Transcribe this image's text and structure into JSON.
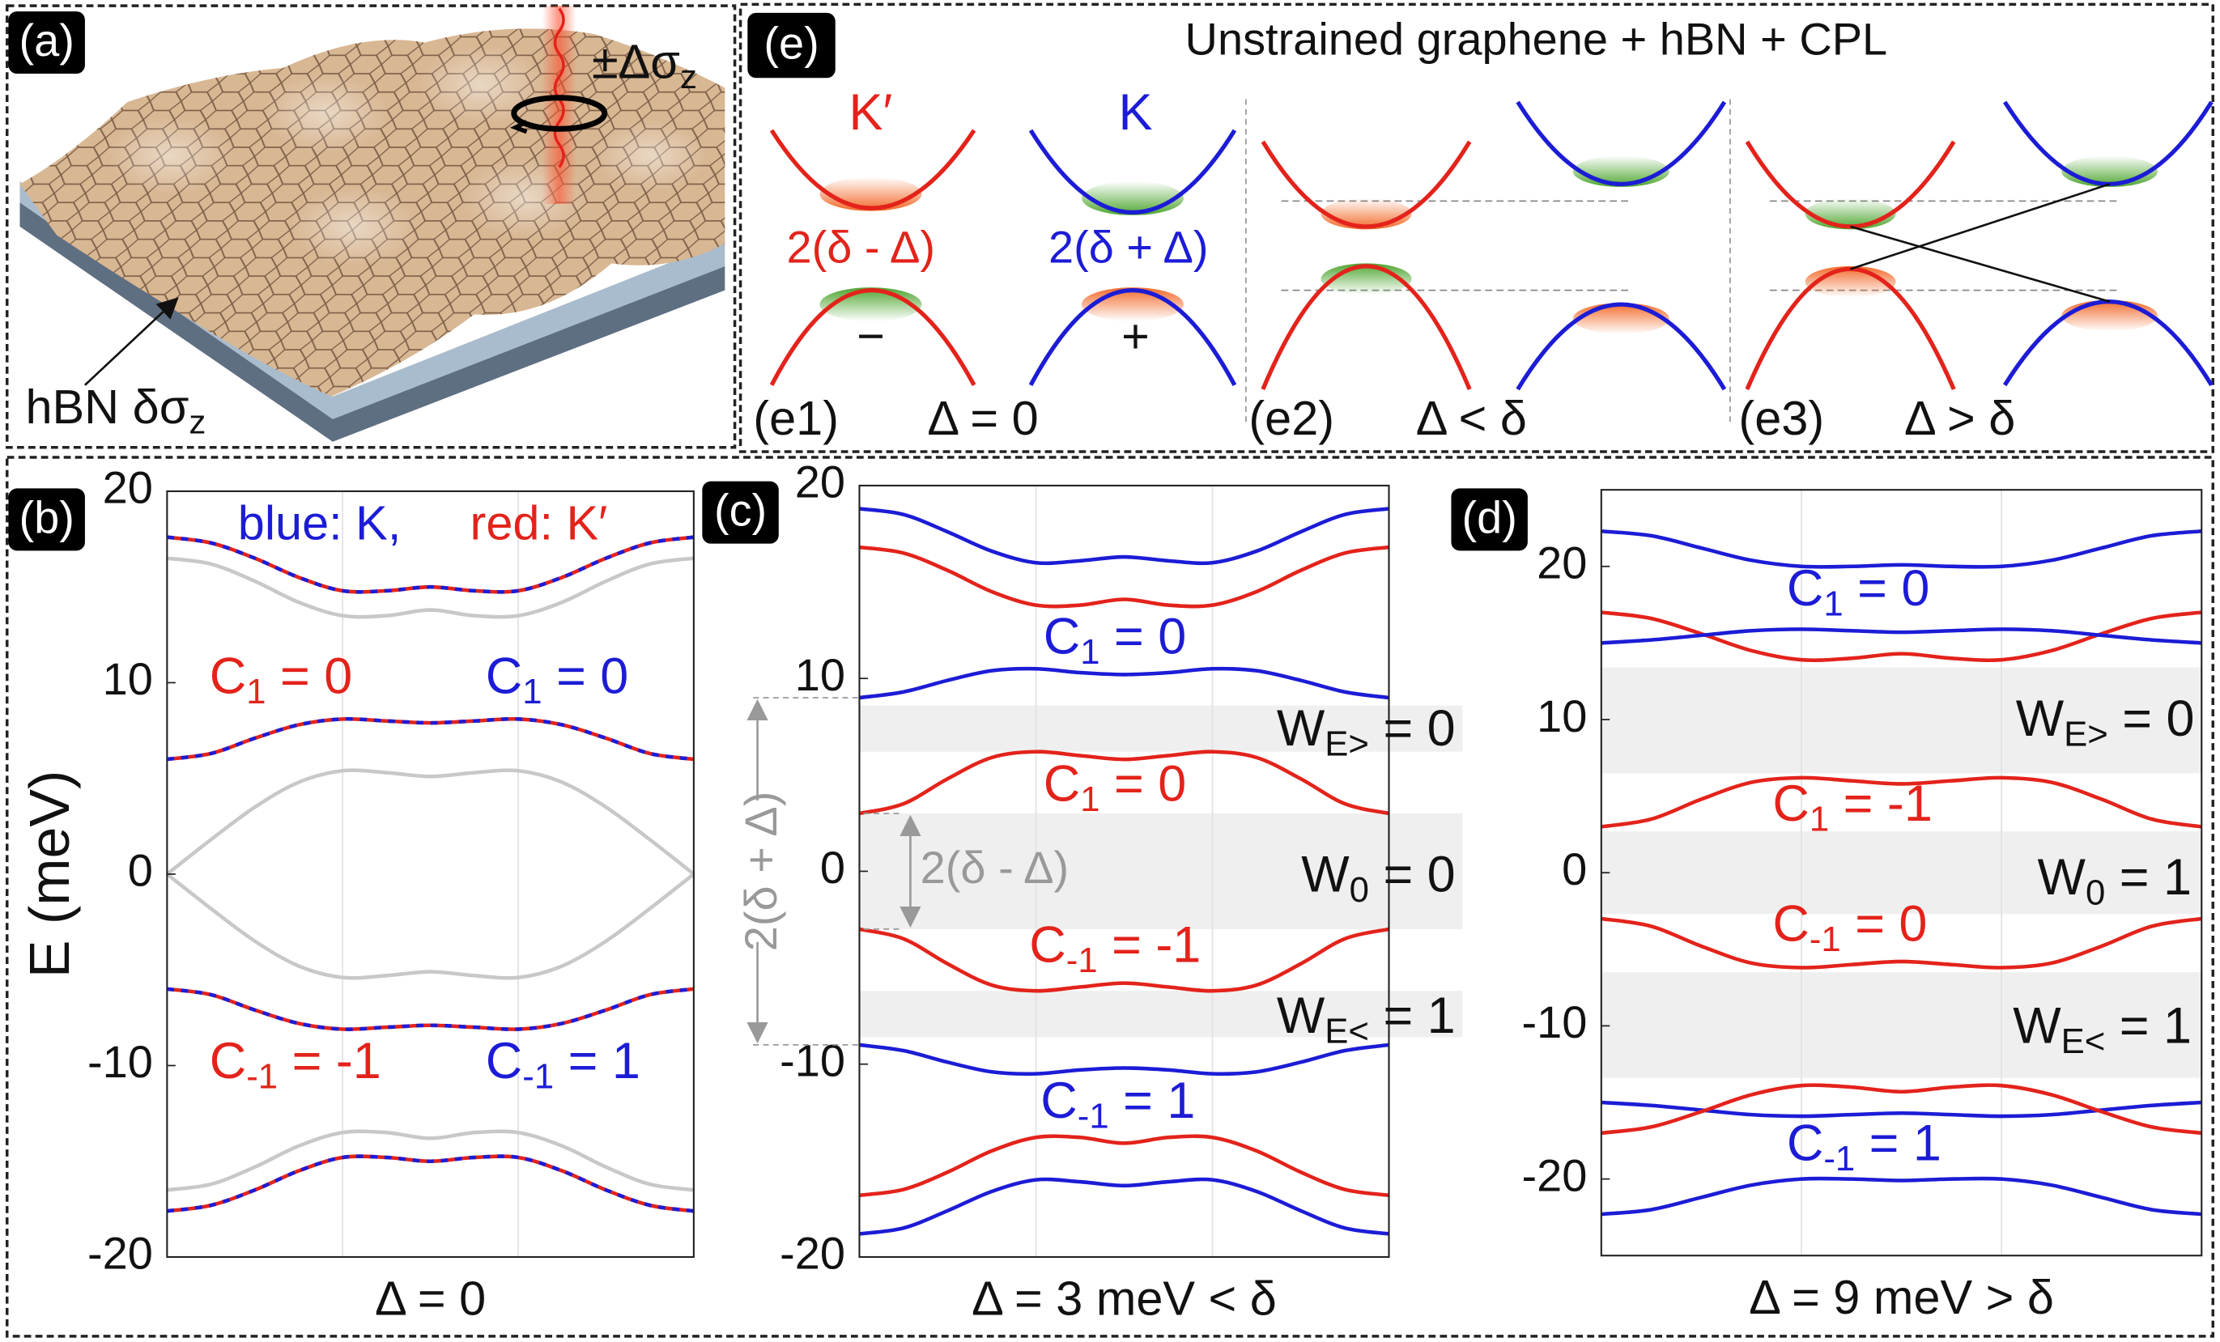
{
  "panels": {
    "a": {
      "label": "(a)",
      "beam_label": {
        "base": "±Δσ",
        "sub": "z"
      },
      "substrate_label": {
        "base": "hBN δσ",
        "sub": "z"
      }
    },
    "e": {
      "label": "(e)",
      "title": "Unstrained graphene + hBN + CPL",
      "valley_kp": "K′",
      "valley_k": "K",
      "gap_kp": "2(δ - Δ)",
      "gap_k": "2(δ + Δ)",
      "sign_minus": "−",
      "sign_plus": "+",
      "e1": "(e1)",
      "e1_cond": "Δ = 0",
      "e2": "(e2)",
      "e2_cond": "Δ < δ",
      "e3": "(e3)",
      "e3_cond": "Δ > δ"
    }
  },
  "chart_data": [
    {
      "type": "line",
      "panel_label": "(b)",
      "ylabel": "E (meV)",
      "xlabel": "Δ = 0",
      "legend_labels": [
        {
          "text": "blue: K,",
          "color": "#1c1cd6"
        },
        {
          "text": "red: K′",
          "color": "#e3231b"
        }
      ],
      "x": [
        0,
        1,
        2,
        3,
        4,
        5,
        6,
        7,
        8,
        9,
        10,
        11,
        12
      ],
      "xlim": [
        0,
        12
      ],
      "xticks": [
        4,
        8
      ],
      "ylim": [
        -20,
        20
      ],
      "yticks": [
        -20,
        -10,
        0,
        10,
        20
      ],
      "grid": true,
      "series": [
        {
          "color": "#e3231b",
          "dash_color": "#1c1cd6",
          "values": [
            17.6,
            17.3,
            16.5,
            15.5,
            14.8,
            14.8,
            15.0,
            14.8,
            14.8,
            15.5,
            16.5,
            17.3,
            17.6
          ]
        },
        {
          "color": "#c8c8c8",
          "values": [
            16.5,
            16.2,
            15.3,
            14.2,
            13.5,
            13.5,
            13.8,
            13.5,
            13.5,
            14.2,
            15.3,
            16.2,
            16.5
          ]
        },
        {
          "color": "#e3231b",
          "dash_color": "#1c1cd6",
          "values": [
            6.0,
            6.3,
            7.1,
            7.8,
            8.1,
            8.0,
            7.9,
            8.0,
            8.1,
            7.8,
            7.1,
            6.3,
            6.0
          ]
        },
        {
          "color": "#c8c8c8",
          "values": [
            0,
            1.8,
            3.5,
            4.8,
            5.4,
            5.3,
            5.1,
            5.3,
            5.4,
            4.8,
            3.5,
            1.8,
            0
          ]
        },
        {
          "color": "#c8c8c8",
          "values": [
            0,
            -1.8,
            -3.5,
            -4.8,
            -5.4,
            -5.3,
            -5.1,
            -5.3,
            -5.4,
            -4.8,
            -3.5,
            -1.8,
            0
          ]
        },
        {
          "color": "#e3231b",
          "dash_color": "#1c1cd6",
          "values": [
            -6.0,
            -6.3,
            -7.1,
            -7.8,
            -8.1,
            -8.0,
            -7.9,
            -8.0,
            -8.1,
            -7.8,
            -7.1,
            -6.3,
            -6.0
          ]
        },
        {
          "color": "#c8c8c8",
          "values": [
            -16.5,
            -16.2,
            -15.3,
            -14.2,
            -13.5,
            -13.5,
            -13.8,
            -13.5,
            -13.5,
            -14.2,
            -15.3,
            -16.2,
            -16.5
          ]
        },
        {
          "color": "#e3231b",
          "dash_color": "#1c1cd6",
          "values": [
            -17.6,
            -17.3,
            -16.5,
            -15.5,
            -14.8,
            -14.8,
            -15.0,
            -14.8,
            -14.8,
            -15.5,
            -16.5,
            -17.3,
            -17.6
          ]
        }
      ],
      "annotations": [
        {
          "base": "C",
          "sub": "1",
          "tail": " = 0",
          "color": "#e3231b"
        },
        {
          "base": "C",
          "sub": "1",
          "tail": " = 0",
          "color": "#1c1cd6"
        },
        {
          "base": "C",
          "sub": "-1",
          "tail": " = -1",
          "color": "#e3231b"
        },
        {
          "base": "C",
          "sub": "-1",
          "tail": " = 1",
          "color": "#1c1cd6"
        }
      ]
    },
    {
      "type": "line",
      "panel_label": "(c)",
      "xlabel": "Δ = 3 meV < δ",
      "gap_labels": [
        "2(δ + Δ)",
        "2(δ - Δ)"
      ],
      "x": [
        0,
        1,
        2,
        3,
        4,
        5,
        6,
        7,
        8,
        9,
        10,
        11,
        12
      ],
      "xlim": [
        0,
        12
      ],
      "xticks": [
        4,
        8
      ],
      "ylim": [
        -20,
        20
      ],
      "yticks": [
        -20,
        -10,
        0,
        10,
        20
      ],
      "grid": true,
      "shaded_ranges": [
        [
          6.2,
          8.6
        ],
        [
          -3.0,
          3.0
        ],
        [
          -8.6,
          -6.2
        ]
      ],
      "series": [
        {
          "color": "#1c1cd6",
          "values": [
            18.8,
            18.5,
            17.6,
            16.6,
            16.0,
            16.1,
            16.3,
            16.1,
            16.0,
            16.6,
            17.6,
            18.5,
            18.8
          ]
        },
        {
          "color": "#e3231b",
          "values": [
            16.8,
            16.5,
            15.6,
            14.5,
            13.8,
            13.8,
            14.1,
            13.8,
            13.8,
            14.5,
            15.6,
            16.5,
            16.8
          ]
        },
        {
          "color": "#1c1cd6",
          "values": [
            9.0,
            9.3,
            9.9,
            10.4,
            10.5,
            10.3,
            10.2,
            10.3,
            10.5,
            10.4,
            9.9,
            9.3,
            9.0
          ]
        },
        {
          "color": "#e3231b",
          "values": [
            3.0,
            3.5,
            4.8,
            5.9,
            6.2,
            6.0,
            5.8,
            6.0,
            6.2,
            5.9,
            4.8,
            3.5,
            3.0
          ]
        },
        {
          "color": "#e3231b",
          "values": [
            -3.0,
            -3.5,
            -4.8,
            -5.9,
            -6.2,
            -6.0,
            -5.8,
            -6.0,
            -6.2,
            -5.9,
            -4.8,
            -3.5,
            -3.0
          ]
        },
        {
          "color": "#1c1cd6",
          "values": [
            -9.0,
            -9.3,
            -9.9,
            -10.4,
            -10.5,
            -10.3,
            -10.2,
            -10.3,
            -10.5,
            -10.4,
            -9.9,
            -9.3,
            -9.0
          ]
        },
        {
          "color": "#e3231b",
          "values": [
            -16.8,
            -16.5,
            -15.6,
            -14.5,
            -13.8,
            -13.8,
            -14.1,
            -13.8,
            -13.8,
            -14.5,
            -15.6,
            -16.5,
            -16.8
          ]
        },
        {
          "color": "#1c1cd6",
          "values": [
            -18.8,
            -18.5,
            -17.6,
            -16.6,
            -16.0,
            -16.1,
            -16.3,
            -16.1,
            -16.0,
            -16.6,
            -17.6,
            -18.5,
            -18.8
          ]
        }
      ],
      "annotations": [
        {
          "base": "C",
          "sub": "1",
          "tail": " = 0",
          "color": "#1c1cd6"
        },
        {
          "base": "W",
          "sub": "E>",
          "tail": " = 0",
          "color": "#111111"
        },
        {
          "base": "C",
          "sub": "1",
          "tail": " = 0",
          "color": "#e3231b"
        },
        {
          "base": "W",
          "sub": "0",
          "tail": " = 0",
          "color": "#111111"
        },
        {
          "base": "C",
          "sub": "-1",
          "tail": " = -1",
          "color": "#e3231b"
        },
        {
          "base": "W",
          "sub": "E<",
          "tail": " = 1",
          "color": "#111111"
        },
        {
          "base": "C",
          "sub": "-1",
          "tail": " = 1",
          "color": "#1c1cd6"
        }
      ]
    },
    {
      "type": "line",
      "panel_label": "(d)",
      "xlabel": "Δ = 9 meV > δ",
      "x": [
        0,
        1,
        2,
        3,
        4,
        5,
        6,
        7,
        8,
        9,
        10,
        11,
        12
      ],
      "xlim": [
        0,
        12
      ],
      "xticks": [
        4,
        8
      ],
      "ylim": [
        -25,
        25
      ],
      "yticks": [
        -20,
        -10,
        0,
        10,
        20
      ],
      "grid": true,
      "shaded_ranges": [
        [
          6.5,
          13.4
        ],
        [
          -2.7,
          2.7
        ],
        [
          -13.4,
          -6.5
        ]
      ],
      "series": [
        {
          "color": "#1c1cd6",
          "values": [
            22.3,
            22.0,
            21.2,
            20.4,
            20.0,
            20.0,
            20.1,
            20.0,
            20.0,
            20.4,
            21.2,
            22.0,
            22.3
          ]
        },
        {
          "color": "#e3231b",
          "values": [
            17.0,
            16.6,
            15.6,
            14.5,
            13.9,
            14.0,
            14.3,
            14.0,
            13.9,
            14.5,
            15.6,
            16.6,
            17.0
          ]
        },
        {
          "color": "#1c1cd6",
          "values": [
            15.0,
            15.2,
            15.5,
            15.8,
            15.9,
            15.8,
            15.7,
            15.8,
            15.9,
            15.8,
            15.5,
            15.2,
            15.0
          ]
        },
        {
          "color": "#e3231b",
          "values": [
            3.0,
            3.5,
            4.8,
            5.9,
            6.2,
            6.0,
            5.8,
            6.0,
            6.2,
            5.9,
            4.8,
            3.5,
            3.0
          ]
        },
        {
          "color": "#e3231b",
          "values": [
            -3.0,
            -3.5,
            -4.8,
            -5.9,
            -6.2,
            -6.0,
            -5.8,
            -6.0,
            -6.2,
            -5.9,
            -4.8,
            -3.5,
            -3.0
          ]
        },
        {
          "color": "#1c1cd6",
          "values": [
            -15.0,
            -15.2,
            -15.5,
            -15.8,
            -15.9,
            -15.8,
            -15.7,
            -15.8,
            -15.9,
            -15.8,
            -15.5,
            -15.2,
            -15.0
          ]
        },
        {
          "color": "#e3231b",
          "values": [
            -17.0,
            -16.6,
            -15.6,
            -14.5,
            -13.9,
            -14.0,
            -14.3,
            -14.0,
            -13.9,
            -14.5,
            -15.6,
            -16.6,
            -17.0
          ]
        },
        {
          "color": "#1c1cd6",
          "values": [
            -22.3,
            -22.0,
            -21.2,
            -20.4,
            -20.0,
            -20.0,
            -20.1,
            -20.0,
            -20.0,
            -20.4,
            -21.2,
            -22.0,
            -22.3
          ]
        }
      ],
      "annotations": [
        {
          "base": "C",
          "sub": "1",
          "tail": " = 0",
          "color": "#1c1cd6"
        },
        {
          "base": "W",
          "sub": "E>",
          "tail": " = 0",
          "color": "#111111"
        },
        {
          "base": "C",
          "sub": "1",
          "tail": " = -1",
          "color": "#e3231b"
        },
        {
          "base": "W",
          "sub": "0",
          "tail": " = 1",
          "color": "#111111"
        },
        {
          "base": "C",
          "sub": "-1",
          "tail": " = 0",
          "color": "#e3231b"
        },
        {
          "base": "W",
          "sub": "E<",
          "tail": " = 1",
          "color": "#111111"
        },
        {
          "base": "C",
          "sub": "-1",
          "tail": " = 1",
          "color": "#1c1cd6"
        }
      ]
    }
  ]
}
